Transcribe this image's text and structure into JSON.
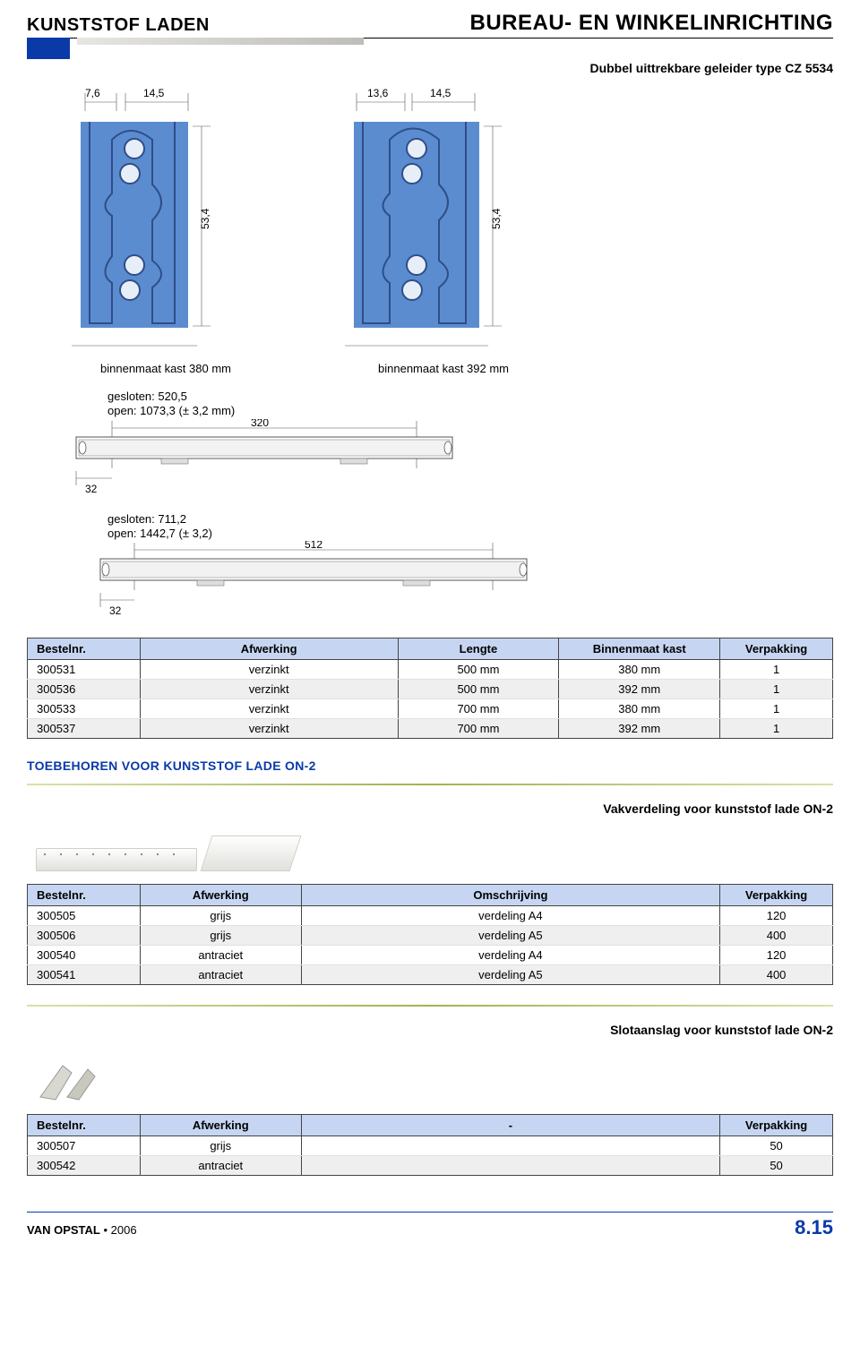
{
  "header": {
    "left": "KUNSTSTOF LADEN",
    "right": "BUREAU- EN WINKELINRICHTING",
    "stripe_blue": "#0a3aa8",
    "stripe_grad_from": "#e8e6e0",
    "stripe_grad_to": "#bfbdba"
  },
  "section1": {
    "caption": "Dubbel uittrekbare geleider type CZ 5534",
    "profile_a": {
      "dim_top1": "7,6",
      "dim_top2": "14,5",
      "dim_side": "53,4",
      "label": "binnenmaat kast 380 mm",
      "fill": "#5b8ccf",
      "line": "#2e4e88"
    },
    "profile_b": {
      "dim_top1": "13,6",
      "dim_top2": "14,5",
      "dim_side": "53,4",
      "label": "binnenmaat kast 392 mm"
    },
    "rail_a": {
      "line1": "gesloten: 520,5",
      "line2": "open: 1073,3 (± 3,2 mm)",
      "dim_main": "320",
      "dim_small": "32"
    },
    "rail_b": {
      "line1": "gesloten: 711,2",
      "line2": "open: 1442,7 (± 3,2)",
      "dim_main": "512",
      "dim_small": "32"
    },
    "table": {
      "headers": [
        "Bestelnr.",
        "Afwerking",
        "Lengte",
        "Binnenmaat kast",
        "Verpakking"
      ],
      "rows": [
        [
          "300531",
          "verzinkt",
          "500 mm",
          "380 mm",
          "1"
        ],
        [
          "300536",
          "verzinkt",
          "500 mm",
          "392 mm",
          "1"
        ],
        [
          "300533",
          "verzinkt",
          "700 mm",
          "380 mm",
          "1"
        ],
        [
          "300537",
          "verzinkt",
          "700 mm",
          "392 mm",
          "1"
        ]
      ]
    }
  },
  "section2": {
    "title": "TOEBEHOREN VOOR KUNSTSTOF LADE ON-2",
    "caption": "Vakverdeling voor kunststof lade ON-2",
    "table": {
      "headers": [
        "Bestelnr.",
        "Afwerking",
        "Omschrijving",
        "Verpakking"
      ],
      "rows": [
        [
          "300505",
          "grijs",
          "verdeling A4",
          "120"
        ],
        [
          "300506",
          "grijs",
          "verdeling A5",
          "400"
        ],
        [
          "300540",
          "antraciet",
          "verdeling A4",
          "120"
        ],
        [
          "300541",
          "antraciet",
          "verdeling A5",
          "400"
        ]
      ]
    }
  },
  "section3": {
    "caption": "Slotaanslag voor kunststof lade ON-2",
    "table": {
      "headers": [
        "Bestelnr.",
        "Afwerking",
        "-",
        "Verpakking"
      ],
      "rows": [
        [
          "300507",
          "grijs",
          "",
          "50"
        ],
        [
          "300542",
          "antraciet",
          "",
          "50"
        ]
      ]
    }
  },
  "footer": {
    "brand": "VAN OPSTAL",
    "sep": " • ",
    "year": "2006",
    "page": "8.15",
    "page_color": "#0a3aa8"
  }
}
